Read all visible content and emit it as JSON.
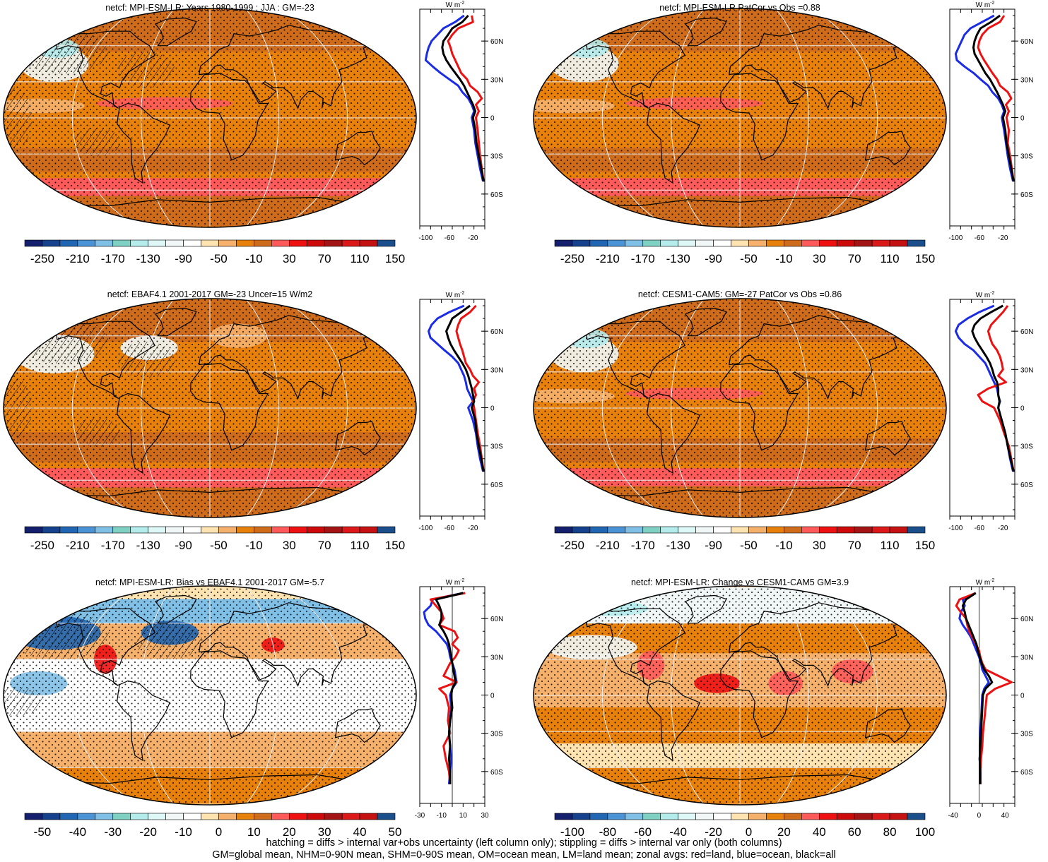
{
  "footer": {
    "line1": "hatching = diffs > internal var+obs uncertainty (left column only); stippling = diffs > internal var only (both columns)",
    "line2": "GM=global mean, NHM=0-90N mean, SHM=0-90S mean, OM=ocean mean, LM=land mean; zonal avgs: red=land, blue=ocean, black=all"
  },
  "zonal_unit": "W m",
  "zonal_unit_exp": "-2",
  "lat_ticks": [
    "60N",
    "30N",
    "0",
    "30S",
    "60S"
  ],
  "colors": {
    "land": "#ee1111",
    "ocean": "#1b2ce6",
    "all": "#000000",
    "stipple": "#000000",
    "graticule": "#eeeeee"
  },
  "scales": {
    "abs": {
      "colors": [
        "#14206e",
        "#15418f",
        "#2066b3",
        "#4a93d6",
        "#80bfe6",
        "#7fd1c4",
        "#b4ebeb",
        "#def7f7",
        "#f1f7f7",
        "#ffffff",
        "#ffe3b0",
        "#f5b16b",
        "#e8800c",
        "#cf6c1c",
        "#ff5a5a",
        "#ee1111",
        "#cc0a0a",
        "#a31515",
        "#db1919",
        "#c41212",
        "#1a4f8c"
      ],
      "labels": [
        "-250",
        "-210",
        "-170",
        "-130",
        "-90",
        "-50",
        "-10",
        "30",
        "70",
        "110",
        "150"
      ]
    },
    "diff_left": {
      "colors": [
        "#14206e",
        "#15418f",
        "#2066b3",
        "#4a93d6",
        "#80bfe6",
        "#7fd1c4",
        "#b4ebeb",
        "#def7f7",
        "#f1f7f7",
        "#ffffff",
        "#ffe3b0",
        "#f5b16b",
        "#e8800c",
        "#cf6c1c",
        "#ff5a5a",
        "#ee1111",
        "#cc0a0a",
        "#a31515",
        "#db1919",
        "#c41212",
        "#1a4f8c"
      ],
      "labels": [
        "-50",
        "-40",
        "-30",
        "-20",
        "-10",
        "0",
        "10",
        "20",
        "30",
        "40",
        "50"
      ]
    },
    "diff_right": {
      "colors": [
        "#14206e",
        "#15418f",
        "#2066b3",
        "#4a93d6",
        "#80bfe6",
        "#7fd1c4",
        "#b4ebeb",
        "#def7f7",
        "#f1f7f7",
        "#ffffff",
        "#ffe3b0",
        "#f5b16b",
        "#e8800c",
        "#cf6c1c",
        "#ff5a5a",
        "#ee1111",
        "#cc0a0a",
        "#a31515",
        "#db1919",
        "#c41212",
        "#1a4f8c"
      ],
      "labels": [
        "-100",
        "-80",
        "-60",
        "-40",
        "-20",
        "0",
        "20",
        "40",
        "60",
        "80",
        "100"
      ]
    }
  },
  "chart_data": [
    {
      "type": "heatmap",
      "title": "netcf: MPI-ESM-LR: Years 1980-1999 : JJA : GM=-23",
      "scale": "abs",
      "hatching": true,
      "theme": "model",
      "zonal": {
        "type": "line",
        "x_ticks": [
          "-100",
          "-60",
          "-20"
        ],
        "xlim": [
          -110,
          0
        ],
        "ref": null,
        "lat": [
          80,
          75,
          70,
          65,
          60,
          55,
          50,
          45,
          40,
          35,
          30,
          25,
          20,
          15,
          10,
          5,
          0,
          -10,
          -20,
          -30,
          -40,
          -50
        ],
        "land": [
          -22,
          -20,
          -45,
          -55,
          -62,
          -58,
          -55,
          -50,
          -45,
          -40,
          -30,
          -25,
          -12,
          -5,
          -15,
          -10,
          -15,
          -12,
          -10,
          -8,
          -5,
          -2
        ],
        "ocean": [
          -35,
          -50,
          -70,
          -80,
          -90,
          -95,
          -98,
          -100,
          -88,
          -75,
          -60,
          -45,
          -38,
          -28,
          -22,
          -18,
          -22,
          -18,
          -16,
          -12,
          -8,
          -3
        ],
        "all": [
          -28,
          -38,
          -55,
          -62,
          -70,
          -72,
          -70,
          -65,
          -58,
          -50,
          -42,
          -35,
          -30,
          -25,
          -20,
          -16,
          -20,
          -16,
          -14,
          -10,
          -6,
          -2
        ]
      }
    },
    {
      "type": "heatmap",
      "title": "netcf: MPI-ESM-LR PatCor vs Obs =0.88",
      "scale": "abs",
      "hatching": false,
      "theme": "model",
      "zonal": {
        "type": "line",
        "x_ticks": [
          "-100",
          "-60",
          "-20"
        ],
        "xlim": [
          -110,
          0
        ],
        "ref": null,
        "lat": [
          80,
          75,
          70,
          65,
          60,
          55,
          50,
          45,
          40,
          35,
          30,
          25,
          20,
          15,
          10,
          5,
          0,
          -10,
          -20,
          -30,
          -40,
          -50
        ],
        "land": [
          -18,
          -25,
          -45,
          -55,
          -60,
          -62,
          -58,
          -52,
          -45,
          -38,
          -30,
          -25,
          -12,
          -6,
          -15,
          -10,
          -14,
          -10,
          -12,
          -8,
          -5,
          -2
        ],
        "ocean": [
          -35,
          -55,
          -75,
          -85,
          -90,
          -95,
          -100,
          -98,
          -85,
          -70,
          -58,
          -45,
          -38,
          -28,
          -22,
          -18,
          -22,
          -18,
          -15,
          -12,
          -8,
          -3
        ],
        "all": [
          -25,
          -40,
          -58,
          -64,
          -68,
          -70,
          -68,
          -62,
          -56,
          -50,
          -42,
          -36,
          -30,
          -25,
          -20,
          -16,
          -20,
          -16,
          -14,
          -10,
          -6,
          -2
        ]
      }
    },
    {
      "type": "heatmap",
      "title": "netcf: EBAF4.1 2001-2017 GM=-23 Uncer=15 W/m2",
      "scale": "abs",
      "hatching": true,
      "theme": "obs",
      "zonal": {
        "type": "line",
        "x_ticks": [
          "-100",
          "-60",
          "-20"
        ],
        "xlim": [
          -110,
          0
        ],
        "ref": null,
        "lat": [
          80,
          75,
          70,
          65,
          60,
          55,
          50,
          45,
          40,
          35,
          30,
          25,
          20,
          15,
          10,
          5,
          0,
          -10,
          -20,
          -30,
          -40,
          -50
        ],
        "land": [
          -15,
          -25,
          -40,
          -45,
          -48,
          -45,
          -42,
          -38,
          -35,
          -32,
          -25,
          -20,
          -10,
          -18,
          -15,
          -20,
          -18,
          -15,
          -12,
          -8,
          -5,
          -2
        ],
        "ocean": [
          -35,
          -60,
          -80,
          -90,
          -95,
          -92,
          -80,
          -68,
          -55,
          -45,
          -40,
          -35,
          -32,
          -30,
          -25,
          -20,
          -28,
          -20,
          -15,
          -12,
          -8,
          -3
        ],
        "all": [
          -25,
          -40,
          -55,
          -60,
          -65,
          -62,
          -58,
          -52,
          -45,
          -38,
          -32,
          -28,
          -25,
          -22,
          -20,
          -18,
          -22,
          -16,
          -14,
          -10,
          -6,
          -2
        ]
      }
    },
    {
      "type": "heatmap",
      "title": "netcf: CESM1-CAM5: GM=-27 PatCor vs Obs =0.86",
      "scale": "abs",
      "hatching": false,
      "theme": "model",
      "zonal": {
        "type": "line",
        "x_ticks": [
          "-100",
          "-60",
          "-20"
        ],
        "xlim": [
          -110,
          0
        ],
        "ref": null,
        "lat": [
          80,
          75,
          70,
          65,
          60,
          55,
          50,
          45,
          40,
          35,
          30,
          25,
          20,
          15,
          10,
          5,
          0,
          -10,
          -20,
          -30,
          -40,
          -50
        ],
        "land": [
          -12,
          -20,
          -30,
          -40,
          -45,
          -42,
          -38,
          -30,
          -25,
          -22,
          -20,
          -28,
          -15,
          -45,
          -62,
          -55,
          -35,
          -25,
          -18,
          -10,
          -6,
          -2
        ],
        "ocean": [
          -35,
          -60,
          -80,
          -95,
          -100,
          -95,
          -85,
          -70,
          -60,
          -50,
          -45,
          -40,
          -35,
          -30,
          -28,
          -25,
          -28,
          -22,
          -16,
          -12,
          -8,
          -3
        ],
        "all": [
          -20,
          -40,
          -58,
          -68,
          -72,
          -68,
          -62,
          -55,
          -48,
          -42,
          -38,
          -35,
          -30,
          -28,
          -28,
          -26,
          -28,
          -22,
          -16,
          -12,
          -7,
          -2
        ]
      }
    },
    {
      "type": "heatmap",
      "title": "netcf: MPI-ESM-LR: Bias vs EBAF4.1 2001-2017 GM=-5.7",
      "scale": "diff_left",
      "hatching": true,
      "theme": "bias",
      "zonal": {
        "type": "line",
        "x_ticks": [
          "-30",
          "-10",
          "10",
          "30"
        ],
        "xlim": [
          -30,
          30
        ],
        "ref": 0,
        "lat": [
          80,
          75,
          70,
          65,
          60,
          55,
          50,
          45,
          40,
          35,
          30,
          25,
          20,
          15,
          10,
          5,
          0,
          -10,
          -20,
          -30,
          -40,
          -50,
          -60,
          -70
        ],
        "land": [
          12,
          -20,
          -15,
          -10,
          -8,
          -12,
          2,
          5,
          0,
          6,
          3,
          -2,
          -5,
          -8,
          4,
          -12,
          -6,
          -3,
          -4,
          -2,
          -8,
          -6,
          -3,
          -2
        ],
        "ocean": [
          10,
          -18,
          -20,
          -26,
          -25,
          -22,
          -15,
          -10,
          -5,
          -3,
          -2,
          0,
          2,
          3,
          4,
          0,
          -2,
          -1,
          -2,
          -3,
          -2,
          -1,
          -2,
          -3
        ],
        "all": [
          10,
          -15,
          -12,
          -10,
          -10,
          -12,
          -8,
          -5,
          -3,
          -2,
          -1,
          0,
          1,
          2,
          3,
          0,
          -1,
          0,
          -2,
          -3,
          -2,
          -3,
          -2,
          -2
        ]
      }
    },
    {
      "type": "heatmap",
      "title": "netcf: MPI-ESM-LR: Change vs CESM1-CAM5 GM=3.9",
      "scale": "diff_right",
      "hatching": false,
      "theme": "change",
      "zonal": {
        "type": "line",
        "x_ticks": [
          "-40",
          "0",
          "40"
        ],
        "xlim": [
          -45,
          55
        ],
        "ref": 0,
        "lat": [
          80,
          75,
          70,
          65,
          60,
          55,
          50,
          45,
          40,
          35,
          30,
          25,
          20,
          15,
          10,
          5,
          0,
          -10,
          -20,
          -30,
          -40,
          -50,
          -60,
          -70
        ],
        "land": [
          -5,
          -30,
          -35,
          -28,
          -20,
          -18,
          -15,
          -10,
          -5,
          0,
          2,
          5,
          10,
          30,
          50,
          25,
          12,
          10,
          8,
          6,
          5,
          3,
          2,
          2
        ],
        "ocean": [
          -5,
          -25,
          -22,
          -28,
          -30,
          -25,
          -18,
          -12,
          -8,
          -4,
          0,
          3,
          5,
          10,
          15,
          8,
          5,
          4,
          3,
          2,
          2,
          1,
          2,
          2
        ],
        "all": [
          -5,
          -20,
          -25,
          -22,
          -20,
          -16,
          -12,
          -8,
          -4,
          -2,
          1,
          4,
          8,
          15,
          20,
          10,
          6,
          5,
          4,
          3,
          2,
          1,
          2,
          2
        ]
      }
    }
  ]
}
